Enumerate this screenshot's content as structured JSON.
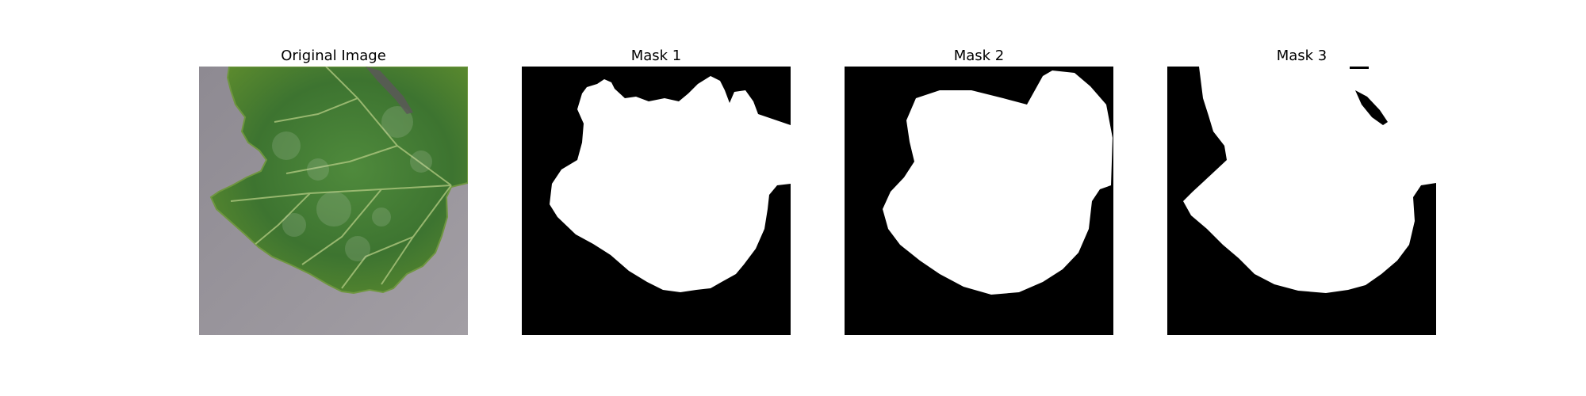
{
  "figure": {
    "panels": [
      {
        "title": "Original Image",
        "kind": "photo",
        "subject": "leaf-photo"
      },
      {
        "title": "Mask 1",
        "kind": "mask",
        "subject": "leaf-mask"
      },
      {
        "title": "Mask 2",
        "kind": "mask",
        "subject": "leaf-mask"
      },
      {
        "title": "Mask 3",
        "kind": "mask",
        "subject": "leaf-mask"
      }
    ]
  },
  "colors": {
    "background": "#ffffff",
    "mask_background": "#000000",
    "mask_foreground": "#ffffff",
    "leaf_green": "#3f7a30",
    "surface_gray": "#9a969c"
  }
}
